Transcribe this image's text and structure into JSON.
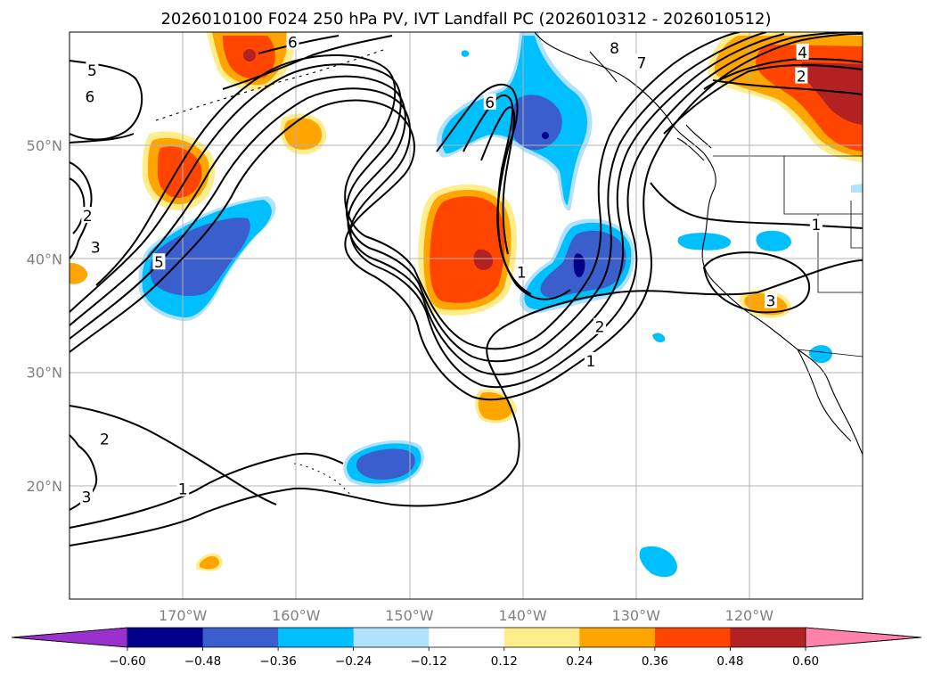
{
  "chart_data": {
    "type": "heatmap",
    "title": "2026010100 F024 250 hPa PV, IVT Landfall PC (2026010312 - 2026010512)",
    "map_extent": {
      "lon": [
        -180,
        -110
      ],
      "lat": [
        10,
        60
      ]
    },
    "grid": true,
    "x_ticks": [
      {
        "lon": -170,
        "label": "170°W"
      },
      {
        "lon": -160,
        "label": "160°W"
      },
      {
        "lon": -150,
        "label": "150°W"
      },
      {
        "lon": -140,
        "label": "140°W"
      },
      {
        "lon": -130,
        "label": "130°W"
      },
      {
        "lon": -120,
        "label": "120°W"
      }
    ],
    "y_ticks": [
      {
        "lat": 20,
        "label": "20°N"
      },
      {
        "lat": 30,
        "label": "30°N"
      },
      {
        "lat": 40,
        "label": "40°N"
      },
      {
        "lat": 50,
        "label": "50°N"
      }
    ],
    "colorbar": {
      "orientation": "horizontal",
      "extend": "both",
      "levels": [
        -0.6,
        -0.48,
        -0.36,
        -0.24,
        -0.12,
        0.12,
        0.24,
        0.36,
        0.48,
        0.6
      ],
      "tick_labels": [
        "−0.60",
        "−0.48",
        "−0.36",
        "−0.24",
        "−0.12",
        "0.12",
        "0.24",
        "0.36",
        "0.48",
        "0.60"
      ],
      "colors": [
        "#9932cc",
        "#00008b",
        "#3a5fcd",
        "#00bfff",
        "#b0e2ff",
        "#ffffff",
        "#ffec8b",
        "#ffa500",
        "#ff4500",
        "#b22222",
        "#ff82ab"
      ]
    },
    "contour_labels": [
      {
        "text": "5",
        "lon": -178,
        "lat": 56.6
      },
      {
        "text": "6",
        "lon": -178.2,
        "lat": 54.3
      },
      {
        "text": "6",
        "lon": -160.3,
        "lat": 59.1
      },
      {
        "text": "8",
        "lon": -131.9,
        "lat": 58.6
      },
      {
        "text": "7",
        "lon": -129.5,
        "lat": 57.3
      },
      {
        "text": "4",
        "lon": -115.3,
        "lat": 58.2
      },
      {
        "text": "2",
        "lon": -115.4,
        "lat": 56.1
      },
      {
        "text": "6",
        "lon": -142.9,
        "lat": 53.8
      },
      {
        "text": "2",
        "lon": -178.4,
        "lat": 43.8
      },
      {
        "text": "3",
        "lon": -177.7,
        "lat": 41.0
      },
      {
        "text": "5",
        "lon": -172.1,
        "lat": 39.7
      },
      {
        "text": "1",
        "lon": -140.1,
        "lat": 38.8
      },
      {
        "text": "2",
        "lon": -133.2,
        "lat": 34.0
      },
      {
        "text": "1",
        "lon": -134.0,
        "lat": 31.0
      },
      {
        "text": "1",
        "lon": -114.1,
        "lat": 43.0
      },
      {
        "text": "3",
        "lon": -118.1,
        "lat": 36.3
      },
      {
        "text": "2",
        "lon": -176.9,
        "lat": 24.1
      },
      {
        "text": "3",
        "lon": -178.5,
        "lat": 19.0
      },
      {
        "text": "1",
        "lon": -170.0,
        "lat": 19.7
      }
    ]
  }
}
